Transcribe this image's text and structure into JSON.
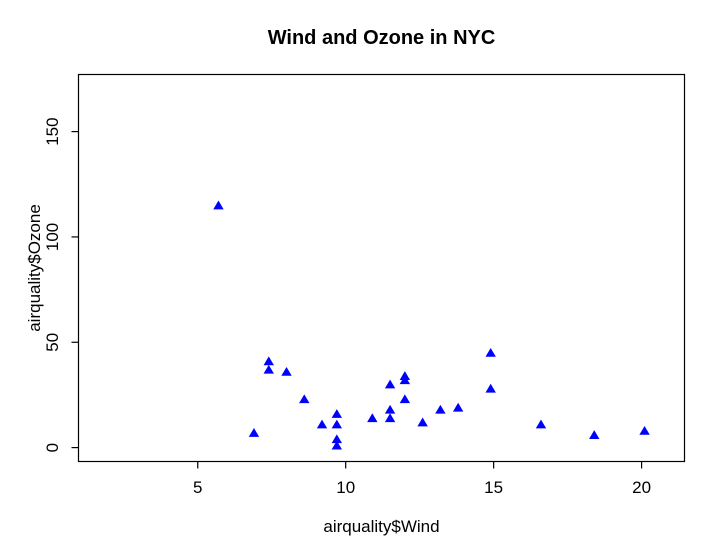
{
  "figure": {
    "background": "#FFFFFF"
  },
  "chart_data": {
    "type": "scatter",
    "title": "Wind and Ozone in NYC",
    "xlabel": "airquality$Wind",
    "ylabel": "airquality$Ozone",
    "xlim": [
      0.97,
      21.45
    ],
    "ylim": [
      -6.6,
      177.1
    ],
    "x_ticks": [
      5,
      10,
      15,
      20
    ],
    "y_ticks": [
      0,
      50,
      100,
      150
    ],
    "grid": false,
    "legend": false,
    "marker": "filled-triangle-up",
    "marker_color": "#0000FF",
    "axis_color": "#000000",
    "text_color": "#000000",
    "series": [
      {
        "x": [
          7.4,
          8.0,
          12.6,
          11.5,
          14.9,
          8.6,
          13.8,
          20.1,
          6.9,
          9.7,
          9.2,
          10.9,
          13.2,
          11.5,
          12.0,
          18.4,
          11.5,
          9.7,
          9.7,
          16.6,
          9.7,
          12.0,
          12.0,
          14.9,
          5.7,
          7.4
        ],
        "y": [
          41,
          36,
          12,
          18,
          28,
          23,
          19,
          8,
          7,
          16,
          11,
          14,
          18,
          14,
          34,
          6,
          30,
          11,
          1,
          11,
          4,
          32,
          23,
          45,
          115,
          37
        ]
      }
    ]
  }
}
